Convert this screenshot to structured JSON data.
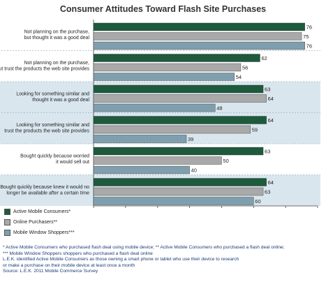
{
  "chart_data": {
    "type": "bar",
    "orientation": "horizontal",
    "title": "Consumer Attitudes Toward Flash Site Purchases",
    "categories": [
      [
        "Not planning on the purchase,",
        "but thought it was a good deal"
      ],
      [
        "Not planning on the purchase,",
        "but trust the products the web site provides"
      ],
      [
        "Looking for something similar and",
        "thought it was a good deal"
      ],
      [
        "Looking for something similar and",
        "trust the products the web site provides"
      ],
      [
        "Bought quickly because worried",
        "it would sell out"
      ],
      [
        "Bought quickly because knew it would no",
        "longer be available after a certain time"
      ]
    ],
    "series": [
      {
        "name": "Active Mobile Consumers*",
        "color": "#1e5a3c",
        "values": [
          76,
          62,
          63,
          64,
          63,
          64
        ]
      },
      {
        "name": "Online Purchasers**",
        "color": "#a9a9a9",
        "values": [
          75,
          56,
          64,
          59,
          50,
          63
        ]
      },
      {
        "name": "Mobile Window Shoppers***",
        "color": "#7f9fae",
        "values": [
          76,
          54,
          48,
          39,
          40,
          60
        ]
      }
    ],
    "xlim": [
      10,
      80
    ],
    "xticks": [
      "10",
      "20",
      "30",
      "40",
      "50",
      "60",
      "70",
      "80%"
    ],
    "band_colors": [
      "#ffffff",
      "#ffffff",
      "#d9e6ee",
      "#d9e6ee",
      "#ffffff",
      "#d9e6ee"
    ],
    "legend_position": "bottom-left"
  },
  "footnotes": [
    "* Active Mobile Consumers who purchased flash deal using mobile device; ** Active Mobile Consumers who purchased a flash deal online;",
    "*** Mobile Window Shoppers shoppers who purchased a flash deal online",
    "L.E.K. identified Active Mobile Consumers as those owning a smart phone or tablet who use their device to research",
    "or make a purchase on their mobile device at least once a month",
    "Source: L.E.K. 2011 Mobile Commerce Survey"
  ]
}
